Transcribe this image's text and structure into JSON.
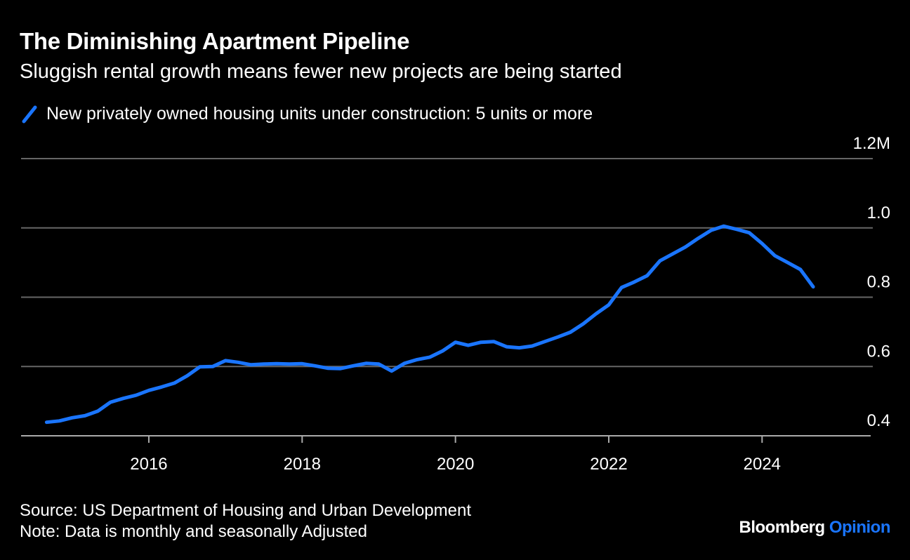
{
  "title": "The Diminishing Apartment Pipeline",
  "subtitle": "Sluggish rental growth means fewer new projects are being started",
  "legend_label": "New privately owned housing units under construction: 5 units or more",
  "source": "Source: US Department of Housing and Urban Development",
  "note": "Note: Data is monthly and seasonally Adjusted",
  "brand": {
    "name": "Bloomberg",
    "product": "Opinion"
  },
  "colors": {
    "background": "#000000",
    "line": "#1a75ff",
    "grid": "#666666",
    "text": "#ffffff",
    "brand_accent": "#1a75ff"
  },
  "chart_data": {
    "type": "line",
    "title": "The Diminishing Apartment Pipeline",
    "subtitle": "Sluggish rental growth means fewer new projects are being started",
    "xlabel": "",
    "ylabel": "",
    "x_ticks": [
      "2016",
      "2018",
      "2020",
      "2022",
      "2024"
    ],
    "y_ticks": [
      {
        "value": 0.4,
        "label": "0.4"
      },
      {
        "value": 0.6,
        "label": "0.6"
      },
      {
        "value": 0.8,
        "label": "0.8"
      },
      {
        "value": 1.0,
        "label": "1.0"
      },
      {
        "value": 1.2,
        "label": "1.2M"
      }
    ],
    "ylim": [
      0.4,
      1.2
    ],
    "xlim": [
      "2014-05",
      "2025-06"
    ],
    "y_unit": "M",
    "grid": "horizontal",
    "legend": "top-left",
    "series": [
      {
        "name": "New privately owned housing units under construction: 5 units or more",
        "points": [
          [
            "2014-09",
            0.439
          ],
          [
            "2014-11",
            0.443
          ],
          [
            "2015-01",
            0.452
          ],
          [
            "2015-03",
            0.458
          ],
          [
            "2015-05",
            0.471
          ],
          [
            "2015-07",
            0.497
          ],
          [
            "2015-09",
            0.508
          ],
          [
            "2015-11",
            0.517
          ],
          [
            "2016-01",
            0.531
          ],
          [
            "2016-03",
            0.541
          ],
          [
            "2016-05",
            0.552
          ],
          [
            "2016-07",
            0.573
          ],
          [
            "2016-09",
            0.599
          ],
          [
            "2016-11",
            0.6
          ],
          [
            "2017-01",
            0.617
          ],
          [
            "2017-03",
            0.612
          ],
          [
            "2017-05",
            0.605
          ],
          [
            "2017-07",
            0.607
          ],
          [
            "2017-09",
            0.608
          ],
          [
            "2017-11",
            0.607
          ],
          [
            "2018-01",
            0.608
          ],
          [
            "2018-03",
            0.602
          ],
          [
            "2018-05",
            0.595
          ],
          [
            "2018-07",
            0.594
          ],
          [
            "2018-09",
            0.602
          ],
          [
            "2018-11",
            0.609
          ],
          [
            "2019-01",
            0.607
          ],
          [
            "2019-03",
            0.587
          ],
          [
            "2019-05",
            0.609
          ],
          [
            "2019-07",
            0.62
          ],
          [
            "2019-09",
            0.627
          ],
          [
            "2019-11",
            0.645
          ],
          [
            "2020-01",
            0.67
          ],
          [
            "2020-03",
            0.661
          ],
          [
            "2020-05",
            0.67
          ],
          [
            "2020-07",
            0.672
          ],
          [
            "2020-09",
            0.657
          ],
          [
            "2020-11",
            0.654
          ],
          [
            "2021-01",
            0.659
          ],
          [
            "2021-03",
            0.672
          ],
          [
            "2021-05",
            0.685
          ],
          [
            "2021-07",
            0.699
          ],
          [
            "2021-09",
            0.723
          ],
          [
            "2021-11",
            0.752
          ],
          [
            "2022-01",
            0.778
          ],
          [
            "2022-03",
            0.828
          ],
          [
            "2022-05",
            0.844
          ],
          [
            "2022-07",
            0.862
          ],
          [
            "2022-09",
            0.905
          ],
          [
            "2022-11",
            0.925
          ],
          [
            "2023-01",
            0.945
          ],
          [
            "2023-03",
            0.97
          ],
          [
            "2023-05",
            0.993
          ],
          [
            "2023-07",
            1.005
          ],
          [
            "2023-09",
            0.996
          ],
          [
            "2023-11",
            0.986
          ],
          [
            "2024-01",
            0.955
          ],
          [
            "2024-03",
            0.92
          ],
          [
            "2024-05",
            0.9
          ],
          [
            "2024-07",
            0.88
          ],
          [
            "2024-09",
            0.83
          ]
        ]
      }
    ]
  }
}
